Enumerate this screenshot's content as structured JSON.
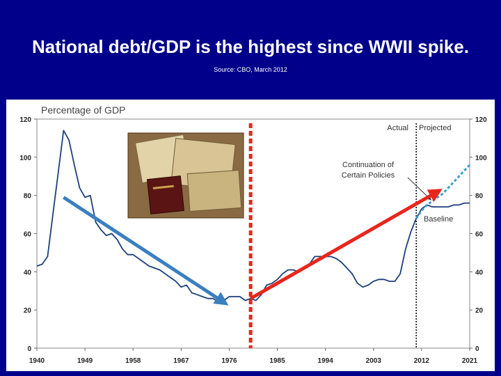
{
  "slide": {
    "title": "National debt/GDP is the highest since WWII spike.",
    "source": "Source: CBO, March 2012"
  },
  "chart_data": {
    "type": "line",
    "title": "Percentage of GDP",
    "xlabel": "",
    "ylabel": "",
    "xlim": [
      1940,
      2021
    ],
    "ylim": [
      0,
      120
    ],
    "x_ticks": [
      1940,
      1949,
      1958,
      1967,
      1976,
      1985,
      1994,
      2003,
      2012,
      2021
    ],
    "y_ticks": [
      0,
      20,
      40,
      60,
      80,
      100,
      120
    ],
    "grid": false,
    "divider_year": 2011,
    "region_labels": {
      "actual": "Actual",
      "projected": "Projected"
    },
    "series": [
      {
        "name": "Actual",
        "x": [
          1940,
          1941,
          1942,
          1943,
          1944,
          1945,
          1946,
          1947,
          1948,
          1949,
          1950,
          1951,
          1952,
          1953,
          1954,
          1955,
          1956,
          1957,
          1958,
          1959,
          1960,
          1961,
          1962,
          1963,
          1964,
          1965,
          1966,
          1967,
          1968,
          1969,
          1970,
          1971,
          1972,
          1973,
          1974,
          1975,
          1976,
          1977,
          1978,
          1979,
          1980,
          1981,
          1982,
          1983,
          1984,
          1985,
          1986,
          1987,
          1988,
          1989,
          1990,
          1991,
          1992,
          1993,
          1994,
          1995,
          1996,
          1997,
          1998,
          1999,
          2000,
          2001,
          2002,
          2003,
          2004,
          2005,
          2006,
          2007,
          2008,
          2009,
          2010,
          2011
        ],
        "values": [
          43,
          44,
          48,
          70,
          92,
          114,
          109,
          96,
          84,
          79,
          80,
          66,
          62,
          59,
          60,
          57,
          52,
          49,
          49,
          47,
          45,
          43,
          42,
          41,
          39,
          37,
          35,
          32,
          33,
          29,
          28,
          27,
          26,
          26,
          24,
          25,
          27,
          27,
          27,
          25,
          26,
          25,
          28,
          33,
          34,
          36,
          39,
          41,
          41,
          40,
          42,
          44,
          48,
          48,
          48,
          48,
          47,
          45,
          42,
          39,
          34,
          32,
          33,
          35,
          36,
          36,
          35,
          35,
          39,
          52,
          61,
          68
        ]
      },
      {
        "name": "Baseline",
        "x": [
          2011,
          2012,
          2013,
          2014,
          2015,
          2016,
          2017,
          2018,
          2019,
          2020,
          2021
        ],
        "values": [
          68,
          73,
          75,
          74,
          74,
          74,
          74,
          75,
          75,
          76,
          76
        ]
      },
      {
        "name": "Continuation of Certain Policies",
        "x": [
          2011,
          2012,
          2013,
          2014,
          2015,
          2016,
          2017,
          2018,
          2019,
          2020,
          2021
        ],
        "values": [
          68,
          72,
          75,
          77,
          79,
          81,
          84,
          87,
          90,
          93,
          96
        ]
      }
    ],
    "annotations": {
      "continuation_label_line1": "Continuation of",
      "continuation_label_line2": "Certain Policies",
      "baseline_label": "Baseline"
    },
    "overlays": {
      "marker_year": 1980,
      "marker_color": "#e8261d",
      "blue_arrow": {
        "from": [
          1945,
          79
        ],
        "to": [
          1975,
          24
        ],
        "color": "#3a7fc0"
      },
      "red_arrow": {
        "from": [
          1980,
          26
        ],
        "to": [
          2015,
          82
        ],
        "color": "#e8261d"
      }
    },
    "colors": {
      "actual": "#1c3f7a",
      "baseline": "#1c3f7a",
      "continuation": "#3b9fc6"
    }
  }
}
